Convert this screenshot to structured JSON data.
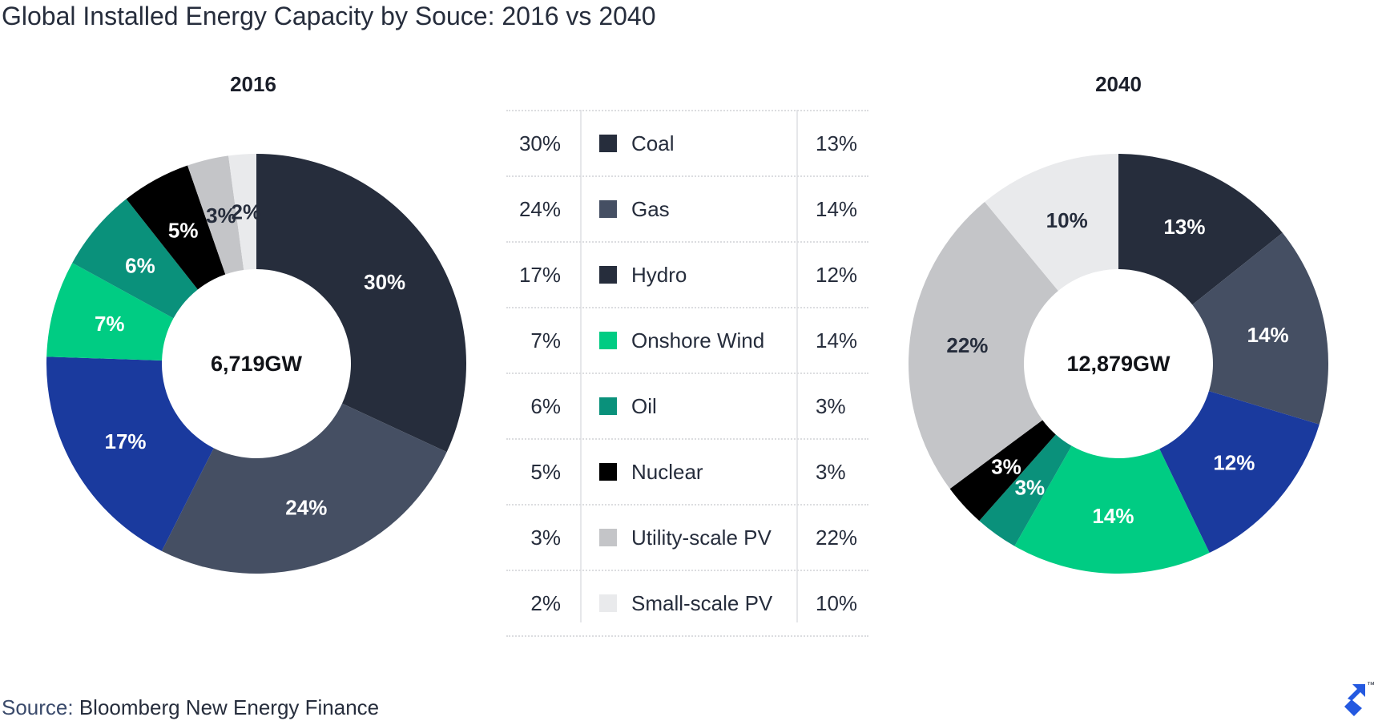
{
  "title": "Global Installed Energy Capacity by Souce: 2016 vs 2040",
  "source": {
    "prefix": "Source:",
    "name": "Bloomberg New Energy Finance"
  },
  "logo": {
    "icon": "toptal-logo-icon",
    "mark": "™"
  },
  "chart_data": [
    {
      "type": "pie",
      "variant": "donut",
      "title": "2016",
      "center_label": "6,719GW",
      "categories": [
        "Coal",
        "Gas",
        "Hydro",
        "Onshore Wind",
        "Oil",
        "Nuclear",
        "Utility-scale PV",
        "Small-scale PV"
      ],
      "values": [
        30,
        24,
        17,
        7,
        6,
        5,
        3,
        2
      ],
      "labels": [
        "30%",
        "24%",
        "17%",
        "7%",
        "6%",
        "5%",
        "3%",
        "2%"
      ],
      "colors": [
        "#262d3c",
        "#454f63",
        "#1a3a9e",
        "#00cc83",
        "#0a917b",
        "#000000",
        "#c4c5c8",
        "#e9eaec"
      ],
      "label_colors": [
        "#ffffff",
        "#ffffff",
        "#ffffff",
        "#ffffff",
        "#ffffff",
        "#ffffff",
        "#262d3c",
        "#262d3c"
      ]
    },
    {
      "type": "pie",
      "variant": "donut",
      "title": "2040",
      "center_label": "12,879GW",
      "categories": [
        "Coal",
        "Gas",
        "Hydro",
        "Onshore Wind",
        "Oil",
        "Nuclear",
        "Utility-scale PV",
        "Small-scale PV"
      ],
      "values": [
        13,
        14,
        12,
        14,
        3,
        3,
        22,
        10
      ],
      "labels": [
        "13%",
        "14%",
        "12%",
        "14%",
        "3%",
        "3%",
        "22%",
        "10%"
      ],
      "colors": [
        "#262d3c",
        "#454f63",
        "#1a3a9e",
        "#00cc83",
        "#0a917b",
        "#000000",
        "#c4c5c8",
        "#e9eaec"
      ],
      "label_colors": [
        "#ffffff",
        "#ffffff",
        "#ffffff",
        "#ffffff",
        "#ffffff",
        "#ffffff",
        "#262d3c",
        "#262d3c"
      ]
    }
  ],
  "legend": {
    "rows": [
      {
        "left": "30%",
        "name": "Coal",
        "right": "13%",
        "color": "#262d3c"
      },
      {
        "left": "24%",
        "name": "Gas",
        "right": "14%",
        "color": "#454f63"
      },
      {
        "left": "17%",
        "name": "Hydro",
        "right": "12%",
        "color": "#262d3c"
      },
      {
        "left": "7%",
        "name": "Onshore Wind",
        "right": "14%",
        "color": "#00cc83"
      },
      {
        "left": "6%",
        "name": "Oil",
        "right": "3%",
        "color": "#0a917b"
      },
      {
        "left": "5%",
        "name": "Nuclear",
        "right": "3%",
        "color": "#000000"
      },
      {
        "left": "3%",
        "name": "Utility-scale PV",
        "right": "22%",
        "color": "#c4c5c8"
      },
      {
        "left": "2%",
        "name": "Small-scale PV",
        "right": "10%",
        "color": "#e9eaec"
      }
    ]
  }
}
